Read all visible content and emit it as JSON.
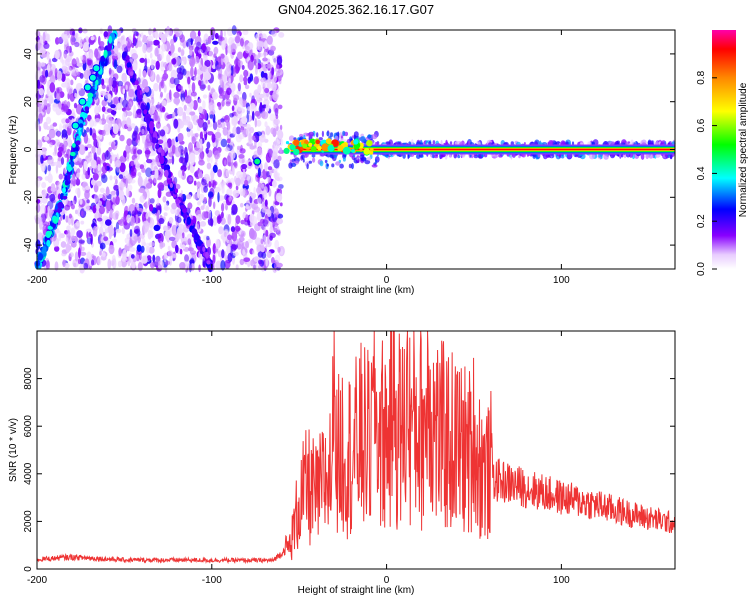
{
  "title": "GN04.2025.362.16.17.G07",
  "chart_data": [
    {
      "type": "heatmap",
      "xlabel": "Height of straight line (km)",
      "ylabel": "Frequency (Hz)",
      "xlim": [
        -200,
        165
      ],
      "ylim": [
        -50,
        50
      ],
      "xticks": [
        -200,
        -100,
        0,
        100
      ],
      "yticks": [
        -40,
        -20,
        0,
        20,
        40
      ],
      "colorbar": {
        "label": "Normalized spectral amplitude",
        "range": [
          0,
          1
        ],
        "ticks": [
          0.0,
          0.2,
          0.4,
          0.6,
          0.8
        ],
        "tick_labels": [
          "0.0",
          "0.2",
          "0.4",
          "0.6",
          "0.8"
        ]
      },
      "features": [
        {
          "kind": "noise",
          "x_range": [
            -200,
            -60
          ],
          "y_range": [
            -50,
            50
          ],
          "level": 0.15
        },
        {
          "kind": "drift_line",
          "points": [
            [
              -200,
              -50
            ],
            [
              -185,
              -20
            ],
            [
              -175,
              10
            ],
            [
              -165,
              30
            ],
            [
              -155,
              50
            ]
          ],
          "level": 0.3
        },
        {
          "kind": "drift_line",
          "points": [
            [
              -150,
              40
            ],
            [
              -135,
              10
            ],
            [
              -120,
              -20
            ],
            [
              -100,
              -50
            ]
          ],
          "level": 0.18
        },
        {
          "kind": "carrier",
          "x_range": [
            -55,
            165
          ],
          "frequency": 0,
          "level": 0.95
        }
      ]
    },
    {
      "type": "line",
      "xlabel": "Height of straight line (km)",
      "ylabel": "SNR (10 * v/v)",
      "xlim": [
        -200,
        165
      ],
      "ylim": [
        0,
        10000
      ],
      "xticks": [
        -200,
        -100,
        0,
        100
      ],
      "yticks": [
        0,
        2000,
        4000,
        6000,
        8000
      ],
      "color": "#ee3333",
      "series": [
        {
          "envelope": [
            [
              -200,
              400
            ],
            [
              -180,
              500
            ],
            [
              -150,
              380
            ],
            [
              -100,
              370
            ],
            [
              -65,
              360
            ],
            [
              -55,
              1000
            ],
            [
              -50,
              2800
            ],
            [
              -45,
              3500
            ],
            [
              -40,
              3000
            ],
            [
              -35,
              3800
            ],
            [
              -30,
              4200
            ],
            [
              -25,
              5200
            ],
            [
              -20,
              4800
            ],
            [
              -15,
              5500
            ],
            [
              -10,
              5300
            ],
            [
              -5,
              5800
            ],
            [
              0,
              5600
            ],
            [
              5,
              6000
            ],
            [
              10,
              5800
            ],
            [
              15,
              6200
            ],
            [
              20,
              6000
            ],
            [
              25,
              6400
            ],
            [
              30,
              5600
            ],
            [
              40,
              5200
            ],
            [
              50,
              4800
            ],
            [
              60,
              3800
            ],
            [
              70,
              3600
            ],
            [
              80,
              3400
            ],
            [
              100,
              3000
            ],
            [
              120,
              2700
            ],
            [
              140,
              2300
            ],
            [
              165,
              1900
            ]
          ],
          "peaks": [
            [
              -30,
              9900
            ],
            [
              -7,
              8600
            ],
            [
              4,
              8900
            ],
            [
              12,
              8600
            ],
            [
              24,
              9100
            ],
            [
              50,
              6000
            ],
            [
              60,
              5000
            ]
          ]
        }
      ]
    }
  ]
}
